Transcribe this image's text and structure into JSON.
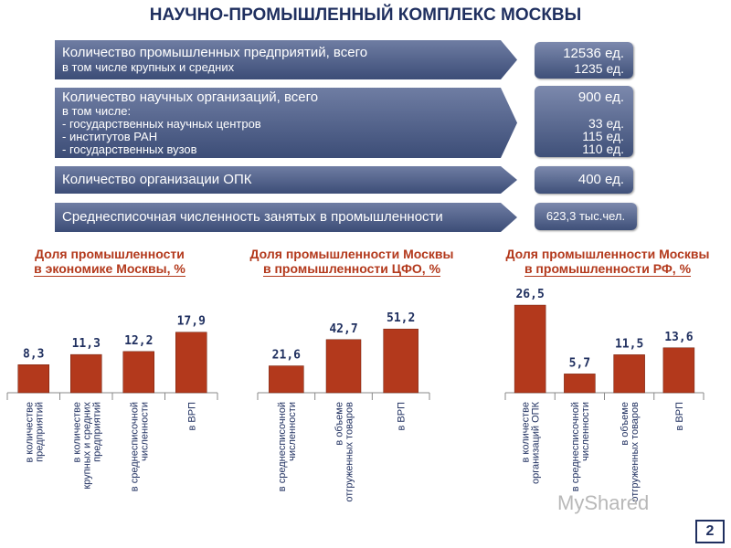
{
  "page": {
    "title": "НАУЧНО-ПРОМЫШЛЕННЫЙ КОМПЛЕКС МОСКВЫ",
    "page_number": "2",
    "watermark": "MyShared"
  },
  "stats": [
    {
      "label": "Количество промышленных предприятий, всего",
      "sublines": [
        "в том числе крупных и средних"
      ],
      "value": "12536 ед.",
      "subvalues": [
        "1235 ед."
      ]
    },
    {
      "label": "Количество научных организаций, всего",
      "sublines": [
        "в том числе:",
        "- государственных научных центров",
        "- институтов РАН",
        "- государственных вузов"
      ],
      "value": "900 ед.",
      "subvalues": [
        "",
        "33 ед.",
        "115 ед.",
        "110 ед."
      ]
    },
    {
      "label": "Количество организации ОПК",
      "sublines": [],
      "value": "400 ед.",
      "subvalues": []
    },
    {
      "label": "Среднесписочная численность занятых в промышленности",
      "sublines": [],
      "value": "623,3 тыс.чел.",
      "subvalues": []
    }
  ],
  "colors": {
    "bar": "#b3391c",
    "bar_label": "#1f2f5f",
    "title_text": "#1f2f5f",
    "chart_title": "#b3391c",
    "banner": "#4b5b84"
  },
  "chart_data": [
    {
      "type": "bar",
      "title": "Доля промышленности в экономике Москвы, %",
      "title_lines": [
        "Доля промышленности",
        "в экономике Москвы, %"
      ],
      "categories": [
        [
          "в количестве",
          "предприятий"
        ],
        [
          "в количестве",
          "крупных и средних",
          "предприятий"
        ],
        [
          "в среднесписочной",
          "численности"
        ],
        [
          "в ВРП"
        ]
      ],
      "values": [
        8.3,
        11.3,
        12.2,
        17.9
      ],
      "value_labels": [
        "8,3",
        "11,3",
        "12,2",
        "17,9"
      ],
      "ylim": [
        0,
        27
      ]
    },
    {
      "type": "bar",
      "title": "Доля промышленности Москвы в промышленности ЦФО, %",
      "title_lines": [
        "Доля промышленности Москвы",
        "в промышленности ЦФО, %"
      ],
      "categories": [
        [
          "в среднесписочной",
          "численности"
        ],
        [
          "в объеме",
          "отгруженных товаров"
        ],
        [
          "в ВРП"
        ]
      ],
      "values": [
        21.6,
        42.7,
        51.2
      ],
      "value_labels": [
        "21,6",
        "42,7",
        "51,2"
      ],
      "ylim": [
        0,
        77
      ]
    },
    {
      "type": "bar",
      "title": "Доля промышленности Москвы в промышленности РФ, %",
      "title_lines": [
        "Доля промышленности Москвы",
        "в промышленности РФ, %"
      ],
      "categories": [
        [
          "в количестве",
          "организаций ОПК"
        ],
        [
          "в среднесписочной",
          "численности"
        ],
        [
          "в объеме",
          "отгруженных товаров"
        ],
        [
          "в ВРП"
        ]
      ],
      "values": [
        26.5,
        5.7,
        11.5,
        13.6
      ],
      "value_labels": [
        "26,5",
        "5,7",
        "11,5",
        "13,6"
      ],
      "ylim": [
        0,
        29
      ]
    }
  ]
}
